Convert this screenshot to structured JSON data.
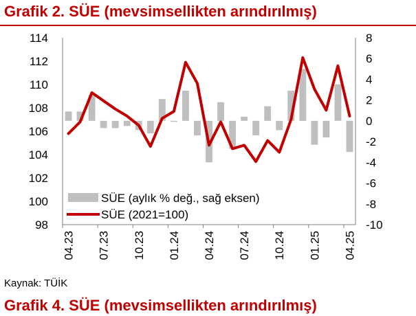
{
  "title": "Grafik 2. SÜE (mevsimsellikten arındırılmış)",
  "source": "Kaynak: TÜİK",
  "next_title": "Grafik 4. SÜE (mevsimsellikten arındırılmış)",
  "colors": {
    "title": "#c00000",
    "line": "#c00000",
    "bars": "#bfbfbf"
  },
  "chart_data": {
    "type": "bar+line",
    "x": [
      "04.23",
      "05.23",
      "06.23",
      "07.23",
      "08.23",
      "09.23",
      "10.23",
      "11.23",
      "12.23",
      "01.24",
      "02.24",
      "03.24",
      "04.24",
      "05.24",
      "06.24",
      "07.24",
      "08.24",
      "09.24",
      "10.24",
      "11.24",
      "12.24",
      "01.25",
      "02.25",
      "03.25",
      "04.25"
    ],
    "x_tick_labels": [
      "04.23",
      "07.23",
      "10.23",
      "01.24",
      "04.24",
      "07.24",
      "10.24",
      "01.25",
      "04.25"
    ],
    "series": [
      {
        "name": "SÜE (aylık % değ., sağ eksen)",
        "type": "bar",
        "axis": "right",
        "values": [
          0.9,
          0.9,
          2.5,
          -0.7,
          -0.7,
          -0.5,
          -0.9,
          -1.2,
          2.1,
          -0.1,
          2.9,
          -1.4,
          -4.0,
          1.8,
          -2.7,
          0.4,
          -1.4,
          1.4,
          -0.9,
          2.9,
          5.0,
          -2.3,
          -1.6,
          3.5,
          -3.0
        ]
      },
      {
        "name": "SÜE (2021=100)",
        "type": "line",
        "axis": "left",
        "values": [
          105.8,
          106.8,
          109.3,
          108.6,
          107.9,
          107.3,
          106.5,
          104.7,
          107.1,
          107.7,
          111.9,
          110.1,
          104.8,
          106.8,
          104.5,
          104.8,
          103.4,
          105.2,
          104.2,
          107.0,
          112.3,
          109.6,
          107.8,
          111.6,
          107.3
        ]
      }
    ],
    "y_left": {
      "min": 98,
      "max": 114,
      "ticks": [
        "98",
        "100",
        "102",
        "104",
        "106",
        "108",
        "110",
        "112",
        "114"
      ]
    },
    "y_right": {
      "min": -10,
      "max": 8,
      "ticks": [
        "-10",
        "-8",
        "-6",
        "-4",
        "-2",
        "0",
        "2",
        "4",
        "6",
        "8"
      ]
    },
    "grid": false,
    "legend_position": "bottom-left"
  }
}
